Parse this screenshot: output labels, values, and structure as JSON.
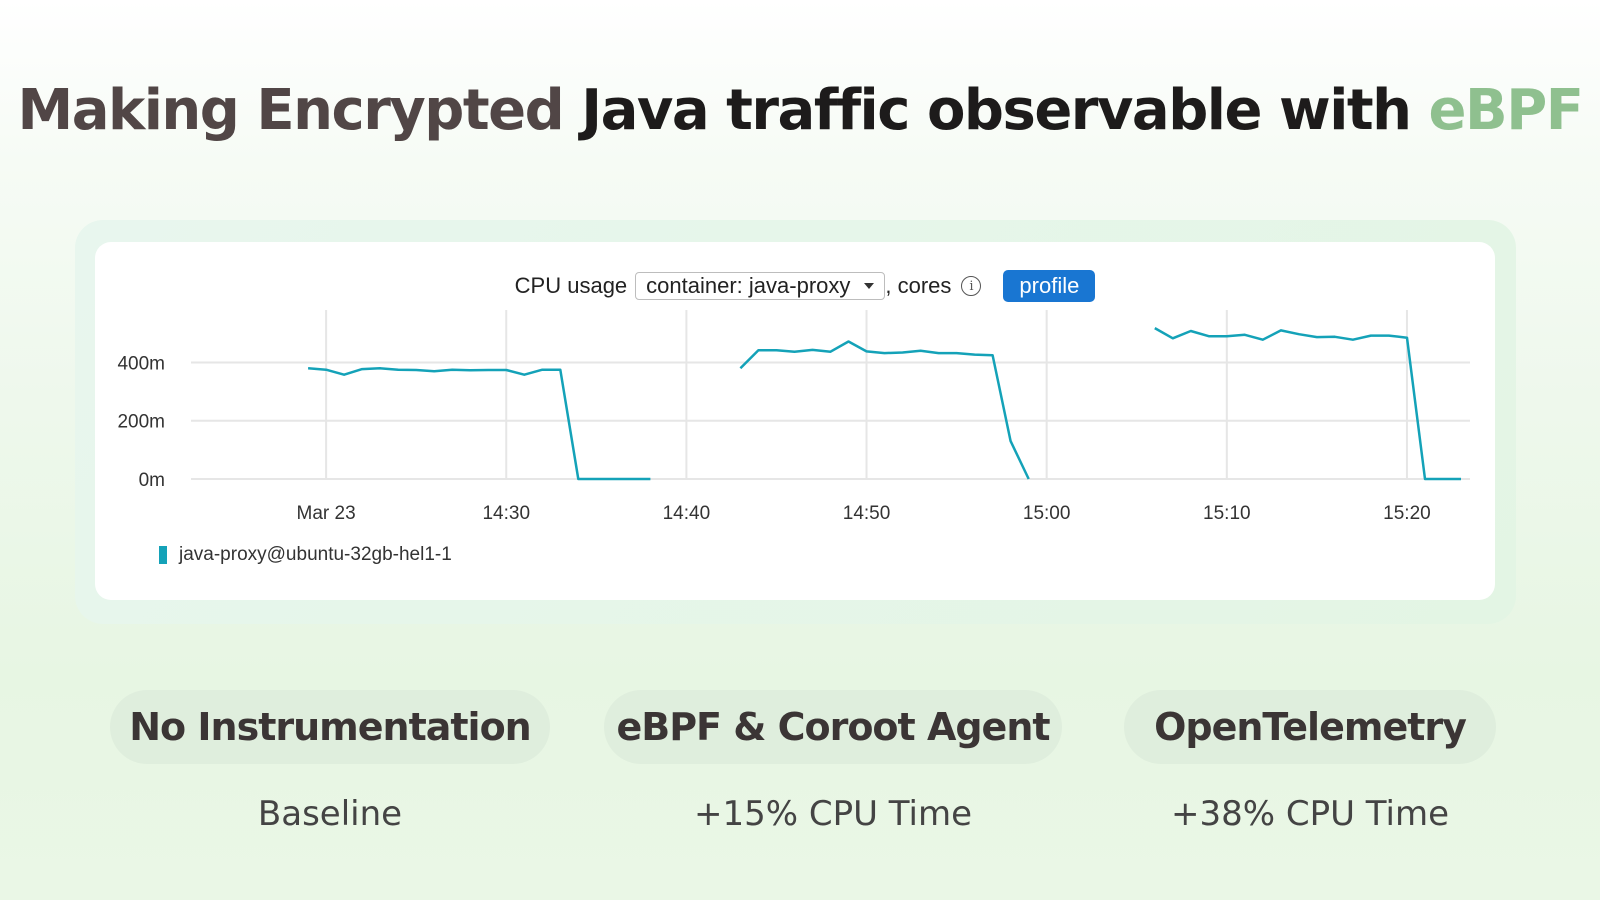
{
  "title": {
    "part1": "Making Encrypted ",
    "part2": "Java traffic observable with ",
    "part3": "eBPF"
  },
  "chart_header": {
    "metric_label": "CPU usage",
    "selector_value": "container: java-proxy",
    "unit_label": ", cores",
    "info_icon": "info-icon",
    "profile_button": "profile"
  },
  "colors": {
    "series": "#14a2b8",
    "accent": "#8fc08f",
    "button": "#1976d2"
  },
  "chart_data": {
    "type": "line",
    "title": "CPU usage",
    "ylabel": "cores",
    "ylim": [
      0,
      580
    ],
    "y_ticks": [
      {
        "value": 0,
        "label": "0m"
      },
      {
        "value": 200,
        "label": "200m"
      },
      {
        "value": 400,
        "label": "400m"
      }
    ],
    "x_ticks": [
      {
        "value": 0,
        "label": "Mar 23"
      },
      {
        "value": 10,
        "label": "14:30"
      },
      {
        "value": 20,
        "label": "14:40"
      },
      {
        "value": 30,
        "label": "14:50"
      },
      {
        "value": 40,
        "label": "15:00"
      },
      {
        "value": 50,
        "label": "15:10"
      },
      {
        "value": 60,
        "label": "15:20"
      }
    ],
    "xlim": [
      -7.5,
      63.5
    ],
    "grid": true,
    "legend_position": "bottom-left",
    "series": [
      {
        "name": "java-proxy@ubuntu-32gb-hel1-1",
        "segments": [
          [
            [
              -1,
              380
            ],
            [
              0,
              375
            ],
            [
              1,
              358
            ],
            [
              2,
              377
            ],
            [
              3,
              380
            ],
            [
              4,
              375
            ],
            [
              5,
              374
            ],
            [
              6,
              370
            ],
            [
              7,
              375
            ],
            [
              8,
              373
            ],
            [
              9,
              374
            ],
            [
              10,
              374
            ],
            [
              11,
              358
            ],
            [
              12,
              375
            ],
            [
              13,
              375
            ],
            [
              14,
              0
            ],
            [
              15,
              0
            ],
            [
              16,
              0
            ],
            [
              17,
              0
            ],
            [
              18,
              0
            ]
          ],
          [
            [
              23,
              380
            ],
            [
              24,
              442
            ],
            [
              25,
              442
            ],
            [
              26,
              437
            ],
            [
              27,
              443
            ],
            [
              28,
              437
            ],
            [
              29,
              472
            ],
            [
              30,
              438
            ],
            [
              31,
              432
            ],
            [
              32,
              434
            ],
            [
              33,
              440
            ],
            [
              34,
              432
            ],
            [
              35,
              432
            ],
            [
              36,
              427
            ],
            [
              37,
              425
            ],
            [
              38,
              130
            ],
            [
              39,
              0
            ]
          ],
          [
            [
              46,
              518
            ],
            [
              47,
              483
            ],
            [
              48,
              508
            ],
            [
              49,
              490
            ],
            [
              50,
              490
            ],
            [
              51,
              495
            ],
            [
              52,
              478
            ],
            [
              53,
              510
            ],
            [
              54,
              497
            ],
            [
              55,
              487
            ],
            [
              56,
              488
            ],
            [
              57,
              478
            ],
            [
              58,
              492
            ],
            [
              59,
              492
            ],
            [
              60,
              485
            ],
            [
              61,
              0
            ],
            [
              62,
              0
            ],
            [
              63,
              0
            ]
          ]
        ]
      }
    ]
  },
  "legend": {
    "label": "java-proxy@ubuntu-32gb-hel1-1"
  },
  "comparison": [
    {
      "label": "No Instrumentation",
      "value": "Baseline"
    },
    {
      "label": "eBPF & Coroot Agent",
      "value": "+15% CPU Time"
    },
    {
      "label": "OpenTelemetry",
      "value": "+38% CPU Time"
    }
  ]
}
